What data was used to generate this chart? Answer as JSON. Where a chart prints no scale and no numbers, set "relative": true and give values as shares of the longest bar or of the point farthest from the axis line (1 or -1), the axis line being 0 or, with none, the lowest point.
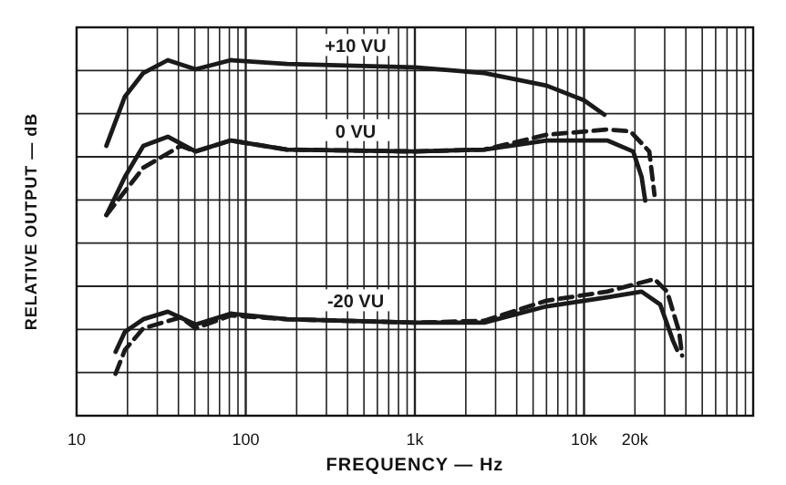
{
  "chart_data": {
    "type": "line",
    "relative": true,
    "xlabel": "FREQUENCY — Hz",
    "ylabel": "RELATIVE OUTPUT — dB",
    "xlim": [
      10,
      100000
    ],
    "xticks": [
      10,
      100,
      {
        "value": 1000,
        "label": "1k"
      },
      {
        "value": 10000,
        "label": "10k"
      },
      {
        "value": 20000,
        "label": "20k"
      }
    ],
    "log": "x",
    "grid": true,
    "series": [
      {
        "name": "+10 VU",
        "color": "#1a1a1a",
        "line_style": "solid",
        "x": [
          15,
          19.3,
          24.8,
          34.6,
          50.5,
          81.6,
          175,
          1000,
          2570,
          6000,
          10000,
          13200
        ],
        "values": [
          0.727,
          0.884,
          0.959,
          1,
          0.971,
          1,
          0.988,
          0.977,
          0.959,
          0.919,
          0.872,
          0.826
        ]
      },
      {
        "name": "0 VU",
        "color": "#1a1a1a",
        "line_style": "solid",
        "x": [
          15,
          19.3,
          24.8,
          34.6,
          50.5,
          81.6,
          175,
          1000,
          2570,
          6000,
          13700,
          19500,
          21900,
          23000
        ],
        "values": [
          0.506,
          0.628,
          0.727,
          0.756,
          0.709,
          0.744,
          0.715,
          0.709,
          0.715,
          0.744,
          0.744,
          0.709,
          0.628,
          0.552
        ]
      },
      {
        "color": "#1a1a1a",
        "line_style": "dashed",
        "x": [
          15,
          24.8,
          41.3,
          50.5,
          81.6,
          175,
          1000,
          2570,
          6000,
          13700,
          18800,
          24300,
          26100
        ],
        "values": [
          0.506,
          0.657,
          0.727,
          0.709,
          0.744,
          0.715,
          0.709,
          0.715,
          0.762,
          0.779,
          0.773,
          0.709,
          0.57
        ]
      },
      {
        "name": "-20 VU",
        "color": "#1a1a1a",
        "line_style": "solid",
        "x": [
          17,
          19.3,
          24.8,
          34.6,
          50.5,
          81.6,
          175,
          1000,
          2570,
          6000,
          13700,
          21900,
          28200,
          33600,
          35500
        ],
        "values": [
          0.07,
          0.134,
          0.174,
          0.198,
          0.157,
          0.192,
          0.174,
          0.163,
          0.163,
          0.215,
          0.244,
          0.262,
          0.221,
          0.105,
          0.076
        ]
      },
      {
        "color": "#1a1a1a",
        "line_style": "dashed",
        "x": [
          17,
          19.3,
          24.8,
          41.3,
          50.5,
          81.6,
          175,
          1000,
          2570,
          6000,
          13700,
          26100,
          31000,
          36500,
          38000
        ],
        "values": [
          0,
          0.076,
          0.145,
          0.18,
          0.145,
          0.186,
          0.174,
          0.163,
          0.169,
          0.233,
          0.262,
          0.302,
          0.262,
          0.134,
          0.058
        ]
      }
    ]
  }
}
